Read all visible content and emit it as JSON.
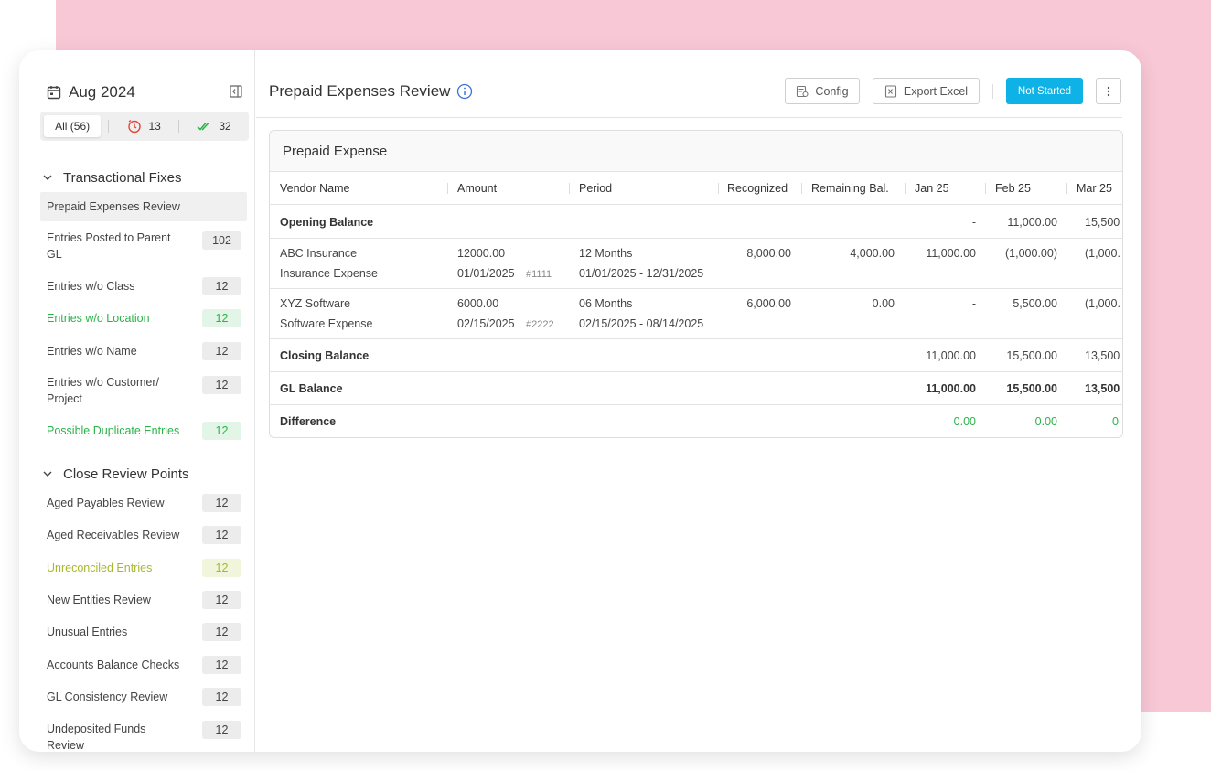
{
  "sidebar": {
    "month": "Aug 2024",
    "filters": {
      "all": "All (56)",
      "pending": "13",
      "done": "32"
    },
    "sections": [
      {
        "title": "Transactional Fixes",
        "items": [
          {
            "label": "Prepaid Expenses Review",
            "badge": ""
          },
          {
            "label": "Entries Posted to Parent GL",
            "badge": "102"
          },
          {
            "label": "Entries w/o Class",
            "badge": "12"
          },
          {
            "label": "Entries w/o Location",
            "badge": "12"
          },
          {
            "label": "Entries w/o Name",
            "badge": "12"
          },
          {
            "label": "Entries w/o Customer/ Project",
            "badge": "12"
          },
          {
            "label": "Possible Duplicate Entries",
            "badge": "12"
          }
        ]
      },
      {
        "title": "Close Review Points",
        "items": [
          {
            "label": "Aged Payables Review",
            "badge": "12"
          },
          {
            "label": "Aged Receivables Review",
            "badge": "12"
          },
          {
            "label": "Unreconciled Entries",
            "badge": "12"
          },
          {
            "label": "New Entities Review",
            "badge": "12"
          },
          {
            "label": "Unusual Entries",
            "badge": "12"
          },
          {
            "label": "Accounts Balance Checks",
            "badge": "12"
          },
          {
            "label": "GL Consistency Review",
            "badge": "12"
          },
          {
            "label": "Undeposited Funds Review",
            "badge": "12"
          }
        ]
      }
    ]
  },
  "header": {
    "title": "Prepaid Expenses Review",
    "config_label": "Config",
    "export_label": "Export Excel",
    "status_label": "Not Started"
  },
  "table": {
    "title": "Prepaid Expense",
    "columns": [
      "Vendor Name",
      "Amount",
      "Period",
      "Recognized",
      "Remaining Bal.",
      "Jan 25",
      "Feb 25",
      "Mar 25"
    ],
    "opening": {
      "label": "Opening Balance",
      "jan": "-",
      "feb": "11,000.00",
      "mar": "15,500"
    },
    "rows": [
      {
        "vendor": "ABC Insurance",
        "account": "Insurance Expense",
        "amount": "12000.00",
        "date": "01/01/2025",
        "ref": "#1111",
        "period": "12 Months",
        "range": "01/01/2025 - 12/31/2025",
        "recognized": "8,000.00",
        "remaining": "4,000.00",
        "jan": "11,000.00",
        "feb": "(1,000.00)",
        "mar": "(1,000."
      },
      {
        "vendor": "XYZ Software",
        "account": "Software Expense",
        "amount": "6000.00",
        "date": "02/15/2025",
        "ref": "#2222",
        "period": "06 Months",
        "range": "02/15/2025 - 08/14/2025",
        "recognized": "6,000.00",
        "remaining": "0.00",
        "jan": "-",
        "feb": "5,500.00",
        "mar": "(1,000."
      }
    ],
    "closing": {
      "label": "Closing Balance",
      "jan": "11,000.00",
      "feb": "15,500.00",
      "mar": "13,500"
    },
    "gl": {
      "label": "GL Balance",
      "jan": "11,000.00",
      "feb": "15,500.00",
      "mar": "13,500"
    },
    "difference": {
      "label": "Difference",
      "jan": "0.00",
      "feb": "0.00",
      "mar": "0"
    }
  },
  "colors": {
    "accent": "#0fb2e6",
    "green": "#2bb34a",
    "lime": "#a8b82e",
    "pink_bg": "#f9c8d7"
  },
  "icons": [
    "calendar-icon",
    "collapse-panel-icon",
    "clock-alert-icon",
    "double-check-icon",
    "chevron-down-icon",
    "info-icon",
    "config-icon",
    "excel-icon",
    "more-vertical-icon"
  ]
}
